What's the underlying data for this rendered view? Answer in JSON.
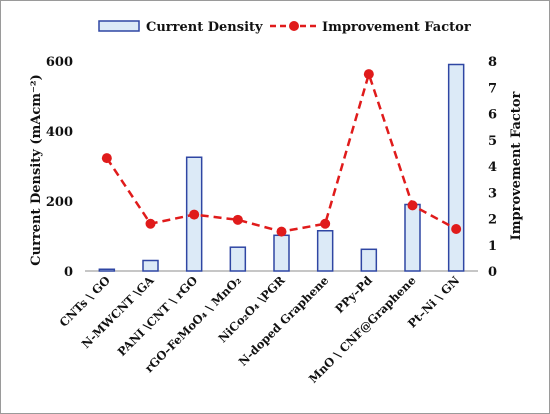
{
  "chart_data": {
    "type": "bar+line",
    "categories": [
      "CNTs \\ GO",
      "N-MWCNT \\GA",
      "PANI \\CNT \\ rGO",
      "rGO–FeMoO₄ \\ MnO₂",
      "NiCo₂O₄ \\PGR",
      "N-doped Graphene",
      "PPy–Pd",
      "MnO \\ CNF@Graphene",
      "Pt–Ni \\ GN"
    ],
    "series": [
      {
        "name": "Current Density",
        "kind": "bar",
        "axis": "left",
        "values": [
          5,
          30,
          325,
          68,
          102,
          115,
          62,
          190,
          590
        ]
      },
      {
        "name": "Improvement Factor",
        "kind": "line",
        "axis": "right",
        "values": [
          4.3,
          1.8,
          2.15,
          1.95,
          1.5,
          1.8,
          7.5,
          2.5,
          1.6
        ]
      }
    ],
    "ylabel": "Current Density (mAcm⁻²)",
    "y2label": "Improvement Factor",
    "ylim": [
      0,
      600
    ],
    "y2lim": [
      0,
      8
    ],
    "yticks": [
      "0",
      "200",
      "400",
      "600"
    ],
    "y2ticks": [
      "0",
      "1",
      "2",
      "3",
      "4",
      "5",
      "6",
      "7",
      "8"
    ],
    "grid": false,
    "legend": "top",
    "colors": {
      "bar_fill": "#dceaf7",
      "bar_stroke": "#2f46a3",
      "line": "#e01b1b"
    }
  }
}
